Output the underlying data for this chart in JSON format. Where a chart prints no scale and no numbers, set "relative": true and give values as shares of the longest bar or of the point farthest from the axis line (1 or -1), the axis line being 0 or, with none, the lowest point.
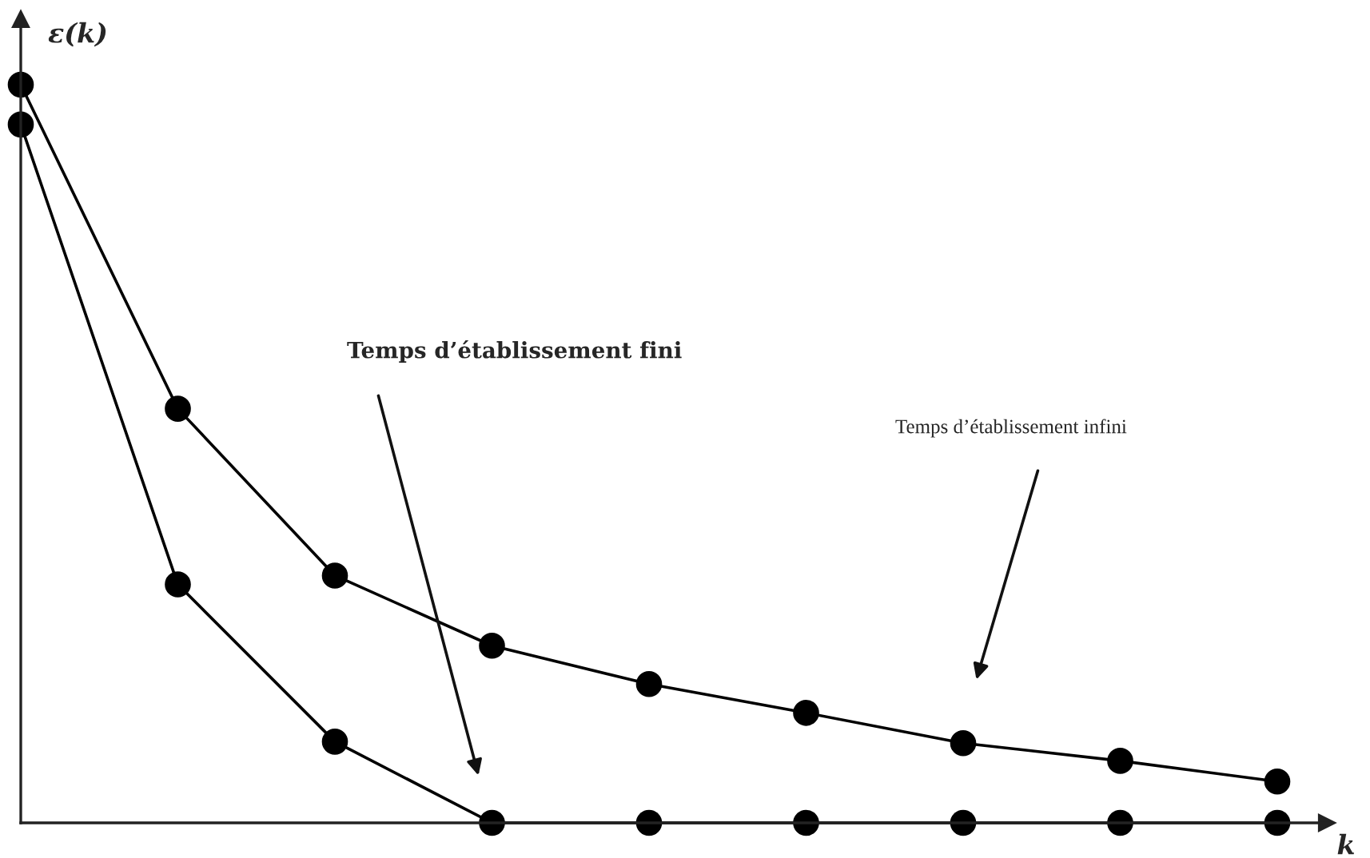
{
  "chart_data": {
    "type": "line",
    "relative": true,
    "ylabel": "ε(k)",
    "xlabel": "k",
    "categories": [
      null,
      null,
      null,
      null,
      null,
      null,
      null,
      null,
      null
    ],
    "series": [
      {
        "color": "#000000",
        "values": [
          1,
          0.561,
          0.335,
          0.24,
          0.188,
          0.149,
          0.108,
          0.084,
          0.056
        ]
      },
      {
        "color": "#000000",
        "values": [
          0.946,
          0.323,
          0.11,
          0,
          0,
          0,
          0,
          0,
          0
        ]
      }
    ],
    "annotations": [
      "Temps d’établissement fini",
      "Temps d’établissement infini"
    ],
    "marker": "circle",
    "line_style": "solid",
    "legend": false
  }
}
